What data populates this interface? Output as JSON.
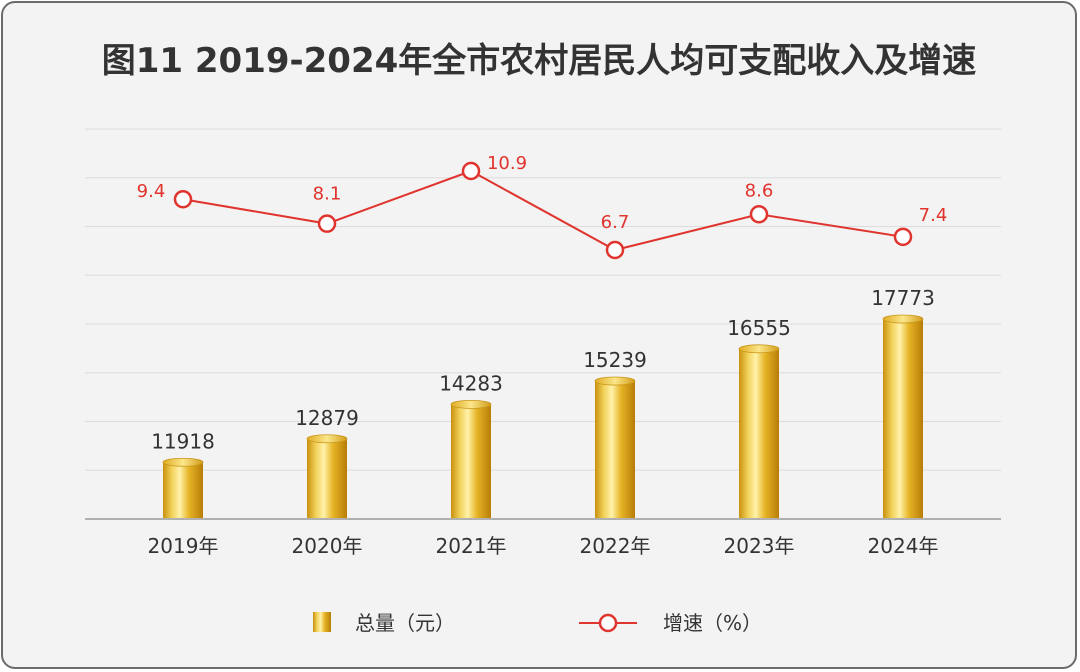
{
  "title": "图11 2019-2024年全市农村居民人均可支配收入及增速",
  "chart_data": {
    "type": "bar",
    "categories": [
      "2019年",
      "2020年",
      "2021年",
      "2022年",
      "2023年",
      "2024年"
    ],
    "series": [
      {
        "name": "总量（元）",
        "type": "bar",
        "values": [
          11918,
          12879,
          14283,
          15239,
          16555,
          17773
        ],
        "color": "#e7b82a"
      },
      {
        "name": "增速（%）",
        "type": "line",
        "values": [
          9.4,
          8.1,
          10.9,
          6.7,
          8.6,
          7.4
        ],
        "value_labels": [
          "9.4",
          "8.1",
          "10.9",
          "6.7",
          "8.6",
          "7.4"
        ],
        "color": "#e0342e"
      }
    ],
    "value_labels": [
      "11918",
      "12879",
      "14283",
      "15239",
      "16555",
      "17773"
    ],
    "grid": true,
    "legend": "bottom"
  },
  "legend": {
    "bar_label": "总量（元）",
    "line_label": "增速（%）"
  }
}
